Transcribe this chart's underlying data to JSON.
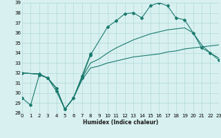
{
  "xlabel": "Humidex (Indice chaleur)",
  "bg_color": "#d8f0f0",
  "line_color": "#1a7a6e",
  "grid_color": "#b0d8d8",
  "xmin": 0,
  "xmax": 23,
  "ymin": 28,
  "ymax": 39,
  "line1_x": [
    0,
    1,
    2,
    3,
    4,
    5,
    6,
    7,
    8
  ],
  "line1_y": [
    29.5,
    28.8,
    31.8,
    31.5,
    30.2,
    28.4,
    29.5,
    31.7,
    33.9
  ],
  "line2_x": [
    0,
    2,
    3,
    4,
    5,
    6,
    7,
    8,
    10,
    11,
    12,
    13,
    14,
    15,
    16,
    17,
    18,
    19,
    20,
    21,
    22,
    23
  ],
  "line2_y": [
    32.0,
    31.9,
    31.5,
    30.5,
    28.4,
    29.5,
    31.5,
    33.8,
    36.6,
    37.2,
    37.9,
    38.0,
    37.5,
    38.7,
    39.0,
    38.7,
    37.5,
    37.3,
    36.0,
    34.5,
    34.0,
    33.3
  ],
  "line3_x": [
    0,
    2,
    3,
    4,
    5,
    6,
    7,
    8,
    9,
    10,
    11,
    12,
    13,
    14,
    15,
    16,
    17,
    18,
    19,
    20,
    21,
    22,
    23
  ],
  "line3_y": [
    32.0,
    31.9,
    31.5,
    30.5,
    28.4,
    29.5,
    31.5,
    33.0,
    33.4,
    34.0,
    34.5,
    34.9,
    35.3,
    35.6,
    35.9,
    36.1,
    36.3,
    36.4,
    36.5,
    36.0,
    34.8,
    34.0,
    33.5
  ],
  "line4_x": [
    0,
    2,
    3,
    4,
    5,
    6,
    7,
    8,
    9,
    10,
    11,
    12,
    13,
    14,
    15,
    16,
    17,
    18,
    19,
    20,
    21,
    22,
    23
  ],
  "line4_y": [
    32.0,
    31.9,
    31.5,
    30.5,
    28.4,
    29.5,
    31.3,
    32.5,
    32.7,
    33.0,
    33.2,
    33.4,
    33.6,
    33.7,
    33.8,
    33.9,
    34.1,
    34.2,
    34.4,
    34.5,
    34.6,
    34.7,
    34.8
  ]
}
